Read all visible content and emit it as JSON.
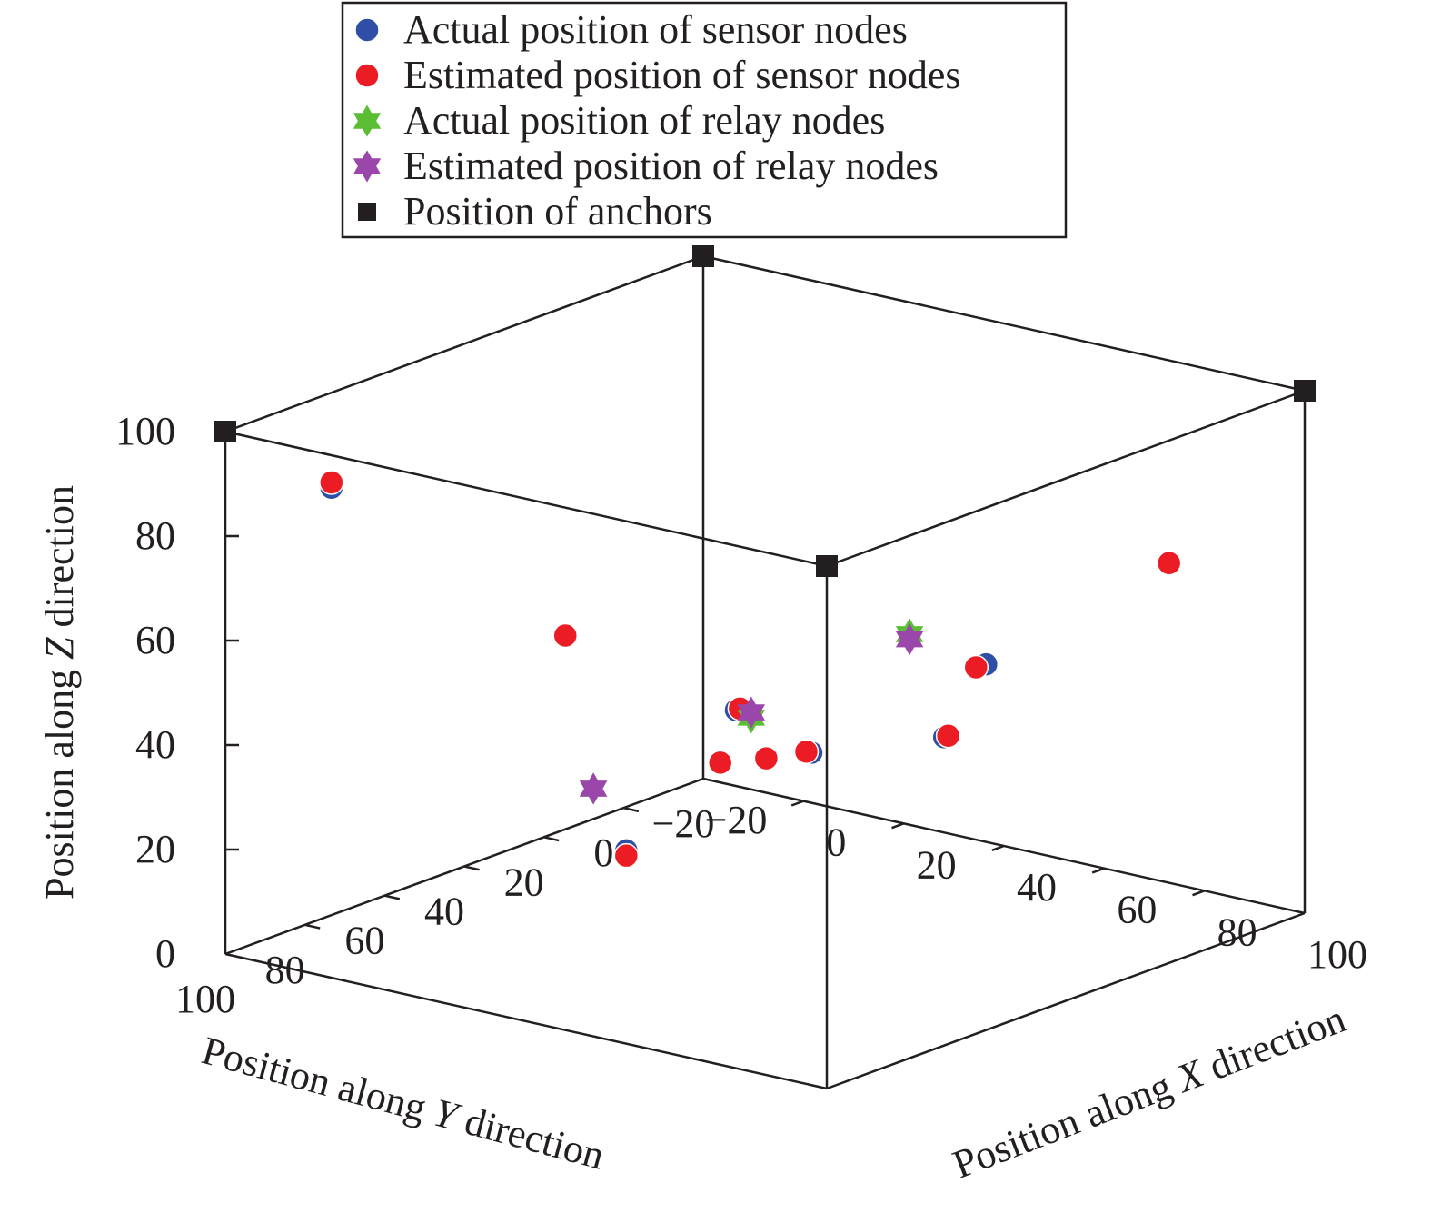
{
  "chart_data": {
    "type": "scatter",
    "dimensions": 3,
    "legend_position": "top-center",
    "grid": false,
    "axes": {
      "x": {
        "label_prefix": "Position along ",
        "label_var": "X",
        "label_suffix": " direction",
        "range": [
          -20,
          100
        ],
        "ticks": [
          "−20",
          "0",
          "20",
          "40",
          "60",
          "80",
          "100"
        ]
      },
      "y": {
        "label_prefix": "Position along ",
        "label_var": "Y",
        "label_suffix": " direction",
        "range": [
          -20,
          100
        ],
        "ticks": [
          "−20",
          "0",
          "20",
          "40",
          "60",
          "80",
          "100"
        ]
      },
      "z": {
        "label_prefix": "Position along ",
        "label_var": "Z",
        "label_suffix": " direction",
        "range": [
          0,
          100
        ],
        "ticks": [
          "0",
          "20",
          "40",
          "60",
          "80",
          "100"
        ]
      }
    },
    "legend": [
      {
        "label": "Actual position of sensor nodes",
        "symbol": "circle",
        "color": "#2e4fa5"
      },
      {
        "label": "Estimated position of sensor nodes",
        "symbol": "circle",
        "color": "#ec1c24"
      },
      {
        "label": "Actual position of relay nodes",
        "symbol": "star",
        "color": "#5bbd33"
      },
      {
        "label": "Estimated position of relay nodes",
        "symbol": "star",
        "color": "#9b46ab"
      },
      {
        "label": "Position of anchors",
        "symbol": "square",
        "color": "#231f20"
      }
    ],
    "series": [
      {
        "name": "Actual position of sensor nodes",
        "points": [
          [
            24,
            70,
            62
          ],
          [
            100,
            60,
            70
          ],
          [
            60,
            100,
            37
          ],
          [
            92,
            4,
            72
          ],
          [
            -2,
            96,
            92
          ],
          [
            35,
            41,
            42
          ],
          [
            27,
            12,
            24
          ],
          [
            18,
            12,
            21
          ],
          [
            12,
            16,
            20
          ],
          [
            40,
            -5,
            25
          ]
        ]
      },
      {
        "name": "Estimated position of sensor nodes",
        "points": [
          [
            24,
            70,
            62
          ],
          [
            98,
            60,
            69
          ],
          [
            60,
            100,
            36
          ],
          [
            92,
            4,
            72
          ],
          [
            -2,
            96,
            93
          ],
          [
            35,
            40,
            42
          ],
          [
            26,
            12,
            24
          ],
          [
            18,
            12,
            21
          ],
          [
            12,
            16,
            20
          ],
          [
            40,
            -6,
            25
          ]
        ]
      },
      {
        "name": "Actual position of relay nodes",
        "points": [
          [
            73,
            85,
            61
          ],
          [
            28,
            68,
            33
          ],
          [
            45,
            10,
            50
          ]
        ]
      },
      {
        "name": "Estimated position of relay nodes",
        "points": [
          [
            73,
            85,
            62
          ],
          [
            28,
            68,
            33
          ],
          [
            45,
            10,
            49
          ]
        ]
      },
      {
        "name": "Position of anchors",
        "points": [
          [
            -20,
            100,
            100
          ],
          [
            100,
            100,
            100
          ],
          [
            -20,
            -20,
            100
          ],
          [
            100,
            -20,
            100
          ]
        ]
      }
    ]
  }
}
